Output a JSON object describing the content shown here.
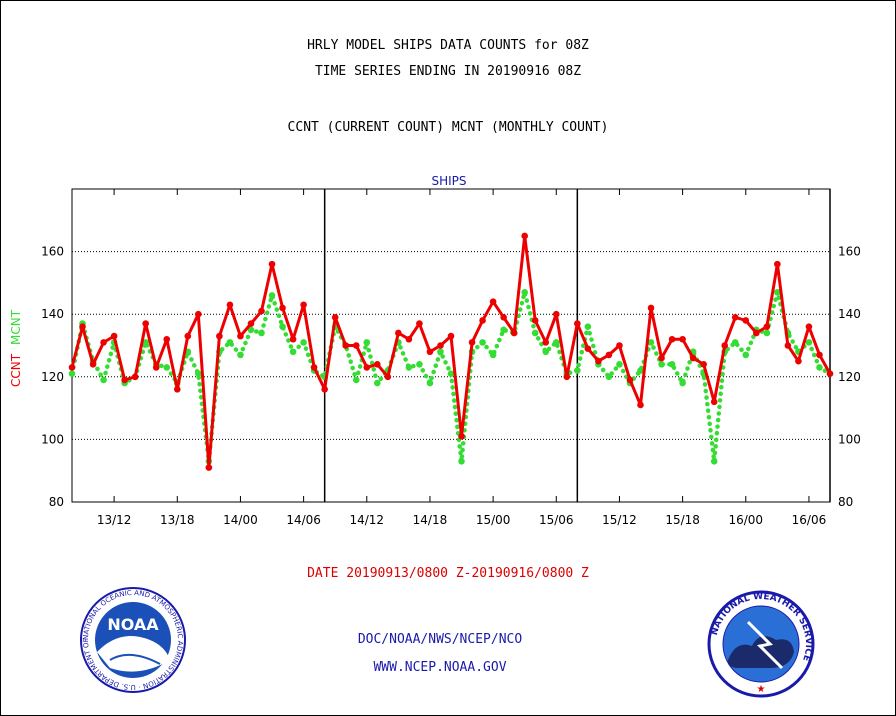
{
  "header": {
    "title_line1": "HRLY MODEL SHIPS DATA COUNTS for 08Z",
    "title_line2": "TIME SERIES ENDING IN 20190916 08Z",
    "subtitle": "CCNT (CURRENT COUNT) MCNT (MONTHLY COUNT)"
  },
  "footer": {
    "date_range": "DATE 20190913/0800 Z-20190916/0800 Z",
    "org": "DOC/NOAA/NWS/NCEP/NCO",
    "url": "WWW.NCEP.NOAA.GOV",
    "noaa_logo_text": "NOAA",
    "noaa_ring_text": "NATIONAL OCEANIC AND ATMOSPHERIC ADMINISTRATION · U.S. DEPARTMENT OF COMMERCE",
    "nws_ring_text": "NATIONAL WEATHER SERVICE"
  },
  "colors": {
    "ccnt": "#ee0000",
    "mcnt": "#33dd33",
    "title_blue": "#1a1aaa",
    "footer_red": "#dd0000"
  },
  "chart_data": {
    "type": "line",
    "title": "SHIPS",
    "ylabel_left": "CCNT",
    "ylabel_right": "MCNT",
    "ylim": [
      80,
      180
    ],
    "yticks": [
      80,
      100,
      120,
      140,
      160
    ],
    "xticks": [
      "13/12",
      "13/18",
      "14/00",
      "14/06",
      "14/12",
      "14/18",
      "15/00",
      "15/06",
      "15/12",
      "15/18",
      "16/00",
      "16/06"
    ],
    "grid": true,
    "day_separators": [
      "14/08",
      "15/08",
      "16/08"
    ],
    "start": "13/08",
    "end": "16/08",
    "series": [
      {
        "name": "CCNT",
        "style": "solid",
        "values": [
          123,
          136,
          124,
          131,
          133,
          119,
          120,
          137,
          123,
          132,
          116,
          133,
          140,
          91,
          133,
          143,
          133,
          137,
          141,
          156,
          142,
          132,
          143,
          123,
          116,
          139,
          130,
          130,
          123,
          124,
          120,
          134,
          132,
          137,
          128,
          130,
          133,
          101,
          131,
          138,
          144,
          139,
          134,
          165,
          138,
          131,
          140,
          120,
          137,
          129,
          125,
          127,
          130,
          119,
          111,
          142,
          126,
          132,
          132,
          126,
          124,
          112,
          130,
          139,
          138,
          134,
          136,
          156,
          130,
          125,
          136,
          127,
          121
        ],
        "color": "#ee0000"
      },
      {
        "name": "MCNT",
        "style": "dotted",
        "values": [
          121,
          137,
          125,
          119,
          131,
          118,
          120,
          131,
          124,
          123,
          118,
          128,
          121,
          93,
          128,
          131,
          127,
          135,
          134,
          146,
          136,
          128,
          131,
          122,
          120,
          136,
          130,
          119,
          131,
          118,
          122,
          131,
          123,
          124,
          118,
          128,
          121,
          93,
          128,
          131,
          127,
          135,
          134,
          147,
          134,
          128,
          131,
          121,
          122,
          136,
          124,
          120,
          124,
          118,
          122,
          131,
          124,
          124,
          118,
          128,
          121,
          93,
          128,
          131,
          127,
          135,
          134,
          147,
          134,
          128,
          131,
          123,
          121
        ],
        "color": "#33dd33"
      }
    ]
  }
}
